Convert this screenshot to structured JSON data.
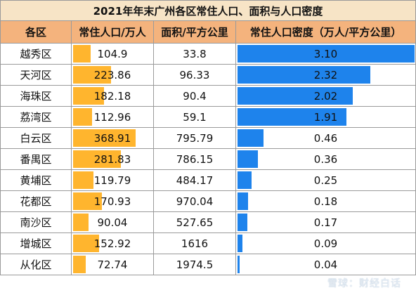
{
  "title": "2021年年末广州各区常住人口、面积与人口密度",
  "headers": [
    "各区",
    "常住人口/万人",
    "面积/平方公里",
    "常住人口密度（万人/平方公里）"
  ],
  "rows": [
    {
      "district": "越秀区",
      "population": "104.9",
      "area": "33.8",
      "density": "3.10"
    },
    {
      "district": "天河区",
      "population": "223.86",
      "area": "96.33",
      "density": "2.32"
    },
    {
      "district": "海珠区",
      "population": "182.18",
      "area": "90.4",
      "density": "2.02"
    },
    {
      "district": "荔湾区",
      "population": "112.96",
      "area": "59.1",
      "density": "1.91"
    },
    {
      "district": "白云区",
      "population": "368.91",
      "area": "795.79",
      "density": "0.46"
    },
    {
      "district": "番禺区",
      "population": "281.83",
      "area": "786.15",
      "density": "0.36"
    },
    {
      "district": "黄埔区",
      "population": "119.79",
      "area": "484.17",
      "density": "0.25"
    },
    {
      "district": "花都区",
      "population": "170.93",
      "area": "970.04",
      "density": "0.18"
    },
    {
      "district": "南沙区",
      "population": "90.04",
      "area": "527.65",
      "density": "0.17"
    },
    {
      "district": "增城区",
      "population": "152.92",
      "area": "1616",
      "density": "0.09"
    },
    {
      "district": "从化区",
      "population": "72.74",
      "area": "1974.5",
      "density": "0.04"
    }
  ],
  "colors": {
    "population_bar": "#ffb52e",
    "density_bar": "#1e83ec",
    "header_bg": "#f4b37d",
    "title_bg": "#f7e4c6"
  },
  "watermark": "雪球：财经白话"
}
